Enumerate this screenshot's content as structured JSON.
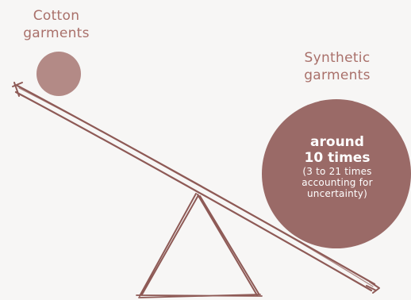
{
  "cotton": {
    "label_line1": "Cotton",
    "label_line2": "garments"
  },
  "synthetic": {
    "label_line1": "Synthetic",
    "label_line2": "garments",
    "headline_line1": "around",
    "headline_line2": "10 times",
    "sub_line1": "(3 to 21 times",
    "sub_line2": "accounting for",
    "sub_line3": "uncertainty)"
  },
  "colors": {
    "background": "#f7f6f5",
    "cotton_circle": "#b38a86",
    "synthetic_circle": "#9a6a67",
    "label_text": "#a9706a",
    "sketch_stroke": "#8e5a56"
  }
}
